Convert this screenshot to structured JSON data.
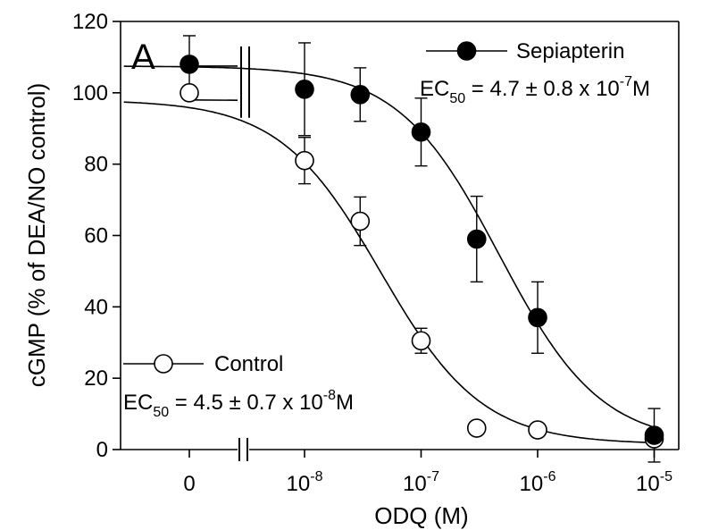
{
  "chart_data": {
    "type": "scatter",
    "panel_label": "A",
    "xlabel": "ODQ (M)",
    "ylabel": "cGMP (% of DEA/NO control)",
    "ylim": [
      0,
      120
    ],
    "yticks": [
      0,
      20,
      40,
      60,
      80,
      100,
      120
    ],
    "x_scale": "log",
    "xlim": [
      "1e-9",
      "1e-5"
    ],
    "x_axis_break": true,
    "xticks": [
      {
        "base": "0",
        "exp": ""
      },
      {
        "base": "10",
        "exp": "-8"
      },
      {
        "base": "10",
        "exp": "-7"
      },
      {
        "base": "10",
        "exp": "-6"
      },
      {
        "base": "10",
        "exp": "-5"
      }
    ],
    "legend_placement": "inline",
    "series": [
      {
        "name": "Sepiapterin",
        "marker": "filled-circle",
        "ec50": {
          "prefix": "EC",
          "sub": "50",
          "body": " = 4.7 ± 0.8 x 10",
          "exp": "-7",
          "unit": "M"
        },
        "points": [
          {
            "x": "0",
            "y": 108,
            "err": 8
          },
          {
            "x": "1e-8",
            "y": 101,
            "err": 13
          },
          {
            "x": "3e-8",
            "y": 99.5,
            "err": 7.5
          },
          {
            "x": "1e-7",
            "y": 89,
            "err": 9.5
          },
          {
            "x": "3e-7",
            "y": 59,
            "err": 12
          },
          {
            "x": "1e-6",
            "y": 37,
            "err": 10
          },
          {
            "x": "1e-5",
            "y": 4,
            "err": 7.5
          }
        ],
        "fit": {
          "top": 107.5,
          "bottom": 1.5,
          "ec50": 4.7e-07
        }
      },
      {
        "name": "Control",
        "marker": "open-circle",
        "ec50": {
          "prefix": "EC",
          "sub": "50",
          "body": " = 4.5 ± 0.7 x 10",
          "exp": "-8",
          "unit": "M"
        },
        "points": [
          {
            "x": "0",
            "y": 100,
            "err": 0
          },
          {
            "x": "1e-8",
            "y": 81,
            "err": 6.5
          },
          {
            "x": "3e-8",
            "y": 64,
            "err": 6.8
          },
          {
            "x": "1e-7",
            "y": 30.5,
            "err": 3.5
          },
          {
            "x": "3e-7",
            "y": 6,
            "err": 0
          },
          {
            "x": "1e-6",
            "y": 5.5,
            "err": 0
          },
          {
            "x": "1e-5",
            "y": 3,
            "err": 0
          }
        ],
        "fit": {
          "top": 98,
          "bottom": 1.5,
          "ec50": 4.5e-08
        }
      }
    ]
  }
}
